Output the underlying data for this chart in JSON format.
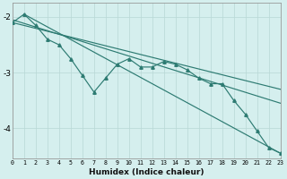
{
  "xlabel": "Humidex (Indice chaleur)",
  "background_color": "#d5efee",
  "line_color": "#2d7b72",
  "grid_color": "#b8d8d5",
  "xlim": [
    0,
    23
  ],
  "ylim": [
    -4.55,
    -1.75
  ],
  "yticks": [
    -4,
    -3,
    -2
  ],
  "ytick_labels": [
    "-4",
    "-3",
    "-2"
  ],
  "xticks": [
    0,
    1,
    2,
    3,
    4,
    5,
    6,
    7,
    8,
    9,
    10,
    11,
    12,
    13,
    14,
    15,
    16,
    17,
    18,
    19,
    20,
    21,
    22,
    23
  ],
  "zigzag_x": [
    0,
    1,
    2,
    3,
    4,
    5,
    6,
    7,
    8,
    9,
    10,
    11,
    12,
    13,
    14,
    15,
    16,
    17,
    18,
    19,
    20,
    21,
    22,
    23
  ],
  "zigzag_y": [
    -2.1,
    -1.95,
    -2.15,
    -2.4,
    -2.5,
    -2.75,
    -3.05,
    -3.35,
    -3.1,
    -2.85,
    -2.75,
    -2.9,
    -2.9,
    -2.8,
    -2.85,
    -2.95,
    -3.1,
    -3.2,
    -3.2,
    -3.5,
    -3.75,
    -4.05,
    -4.35,
    -4.45
  ],
  "line1_x": [
    0,
    23
  ],
  "line1_y": [
    -2.1,
    -3.3
  ],
  "line2_x": [
    0,
    23
  ],
  "line2_y": [
    -2.05,
    -3.55
  ],
  "line3_x": [
    1,
    23
  ],
  "line3_y": [
    -1.95,
    -4.45
  ]
}
